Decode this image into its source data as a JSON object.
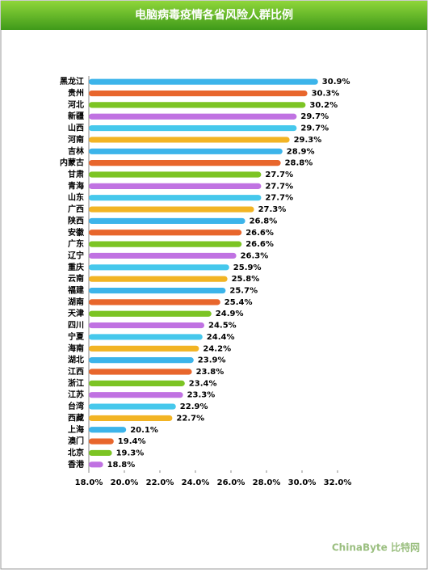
{
  "chart_data": {
    "type": "hbar",
    "title": "电脑病毒疫情各省风险人群比例",
    "categories": [
      "黑龙江",
      "贵州",
      "河北",
      "新疆",
      "山西",
      "河南",
      "吉林",
      "内蒙古",
      "甘肃",
      "青海",
      "山东",
      "广西",
      "陕西",
      "安徽",
      "广东",
      "辽宁",
      "重庆",
      "云南",
      "福建",
      "湖南",
      "天津",
      "四川",
      "宁夏",
      "海南",
      "湖北",
      "江西",
      "浙江",
      "江苏",
      "台湾",
      "西藏",
      "上海",
      "澳门",
      "北京",
      "香港"
    ],
    "values": [
      30.9,
      30.3,
      30.2,
      29.7,
      29.7,
      29.3,
      28.9,
      28.8,
      27.7,
      27.7,
      27.7,
      27.3,
      26.8,
      26.6,
      26.6,
      26.3,
      25.9,
      25.8,
      25.7,
      25.4,
      24.9,
      24.5,
      24.4,
      24.2,
      23.9,
      23.8,
      23.4,
      23.3,
      22.9,
      22.7,
      20.1,
      19.4,
      19.3,
      18.8
    ],
    "value_labels": [
      "30.9%",
      "30.3%",
      "30.2%",
      "29.7%",
      "29.7%",
      "29.3%",
      "28.9%",
      "28.8%",
      "27.7%",
      "27.7%",
      "27.7%",
      "27.3%",
      "26.8%",
      "26.6%",
      "26.6%",
      "26.3%",
      "25.9%",
      "25.8%",
      "25.7%",
      "25.4%",
      "24.9%",
      "24.5%",
      "24.4%",
      "24.2%",
      "23.9%",
      "23.8%",
      "23.4%",
      "23.3%",
      "22.9%",
      "22.7%",
      "20.1%",
      "19.4%",
      "19.3%",
      "18.8%"
    ],
    "colors": [
      "#3cb4ea",
      "#e8662c",
      "#7cc424",
      "#c072e2",
      "#46c8ec",
      "#f2b424"
    ],
    "xlim": [
      18,
      32
    ],
    "xticks": [
      {
        "value": 18,
        "label": "18.0%"
      },
      {
        "value": 20,
        "label": "20.0%"
      },
      {
        "value": 22,
        "label": "22.0%"
      },
      {
        "value": 24,
        "label": "24.0%"
      },
      {
        "value": 26,
        "label": "26.0%"
      },
      {
        "value": 28,
        "label": "28.0%"
      },
      {
        "value": 30,
        "label": "30.0%"
      },
      {
        "value": 32,
        "label": "32.0%"
      }
    ],
    "watermark": "ChinaByte 比特网"
  }
}
